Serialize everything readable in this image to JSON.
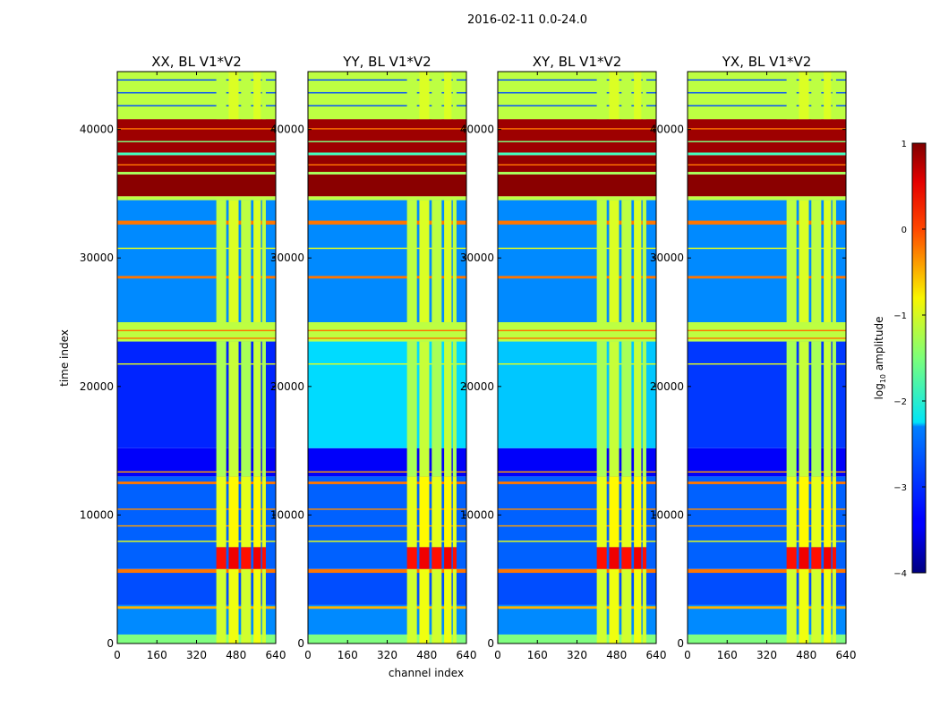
{
  "chart_data": {
    "type": "heatmap",
    "suptitle": "2016-02-11 0.0-24.0",
    "xlabel": "channel index",
    "ylabel": "time index",
    "xlim": [
      0,
      640
    ],
    "ylim": [
      0,
      44500
    ],
    "xticks": [
      0,
      160,
      320,
      480,
      640
    ],
    "yticks": [
      0,
      10000,
      20000,
      30000,
      40000
    ],
    "colorbar": {
      "label_prefix": "log",
      "label_sub": "10",
      "label_suffix": " amplitude",
      "range": [
        -4,
        1
      ],
      "ticks": [
        1,
        0,
        -1,
        -2,
        -3,
        -4
      ],
      "tick_labels": [
        "1",
        "0",
        "−1",
        "−2",
        "−3",
        "−4"
      ],
      "colormap": "jet"
    },
    "panels": [
      {
        "title": "XX, BL V1*V2",
        "floor_mid": -3.2
      },
      {
        "title": "YY, BL V1*V2",
        "floor_mid": -2.3
      },
      {
        "title": "XY, BL V1*V2",
        "floor_mid": -2.4
      },
      {
        "title": "YX, BL V1*V2",
        "floor_mid": -3.1
      }
    ],
    "time_bands": [
      {
        "t": [
          0,
          700
        ],
        "v": -1.5
      },
      {
        "t": [
          700,
          3000
        ],
        "v": -2.7
      },
      {
        "t": [
          2700,
          2900
        ],
        "v": -0.5
      },
      {
        "t": [
          3000,
          5500
        ],
        "v": -3.0
      },
      {
        "t": [
          5500,
          5800
        ],
        "v": -0.2
      },
      {
        "t": [
          5800,
          13000
        ],
        "v": -2.9
      },
      {
        "t": [
          7900,
          8000
        ],
        "v": -1.0
      },
      {
        "t": [
          9100,
          9200
        ],
        "v": -0.4
      },
      {
        "t": [
          10400,
          10500
        ],
        "v": -0.3
      },
      {
        "t": [
          12400,
          12600
        ],
        "v": -0.2
      },
      {
        "t": [
          13000,
          15200
        ],
        "v": -3.4
      },
      {
        "t": [
          13300,
          13400
        ],
        "v": -0.4
      },
      {
        "t": [
          15200,
          23500
        ],
        "v": "mid"
      },
      {
        "t": [
          21700,
          21800
        ],
        "v": -1.0
      },
      {
        "t": [
          23500,
          25000
        ],
        "v": -1.2
      },
      {
        "t": [
          23700,
          23800
        ],
        "v": -0.2
      },
      {
        "t": [
          24300,
          24400
        ],
        "v": -0.2
      },
      {
        "t": [
          25000,
          34500
        ],
        "v": -2.7
      },
      {
        "t": [
          28400,
          28600
        ],
        "v": -0.2
      },
      {
        "t": [
          30700,
          30800
        ],
        "v": -1.0
      },
      {
        "t": [
          32600,
          32900
        ],
        "v": -0.2
      },
      {
        "t": [
          34500,
          34800
        ],
        "v": -1.2
      },
      {
        "t": [
          34800,
          36500
        ],
        "v": 0.95
      },
      {
        "t": [
          36500,
          36700
        ],
        "v": -1.3
      },
      {
        "t": [
          36700,
          38000
        ],
        "v": 0.9
      },
      {
        "t": [
          37200,
          37300
        ],
        "v": -0.2
      },
      {
        "t": [
          38000,
          38200
        ],
        "v": -1.8
      },
      {
        "t": [
          38200,
          40800
        ],
        "v": 0.85
      },
      {
        "t": [
          39000,
          39100
        ],
        "v": -1.5
      },
      {
        "t": [
          40000,
          40100
        ],
        "v": -0.2
      },
      {
        "t": [
          40800,
          44500
        ],
        "v": -1.2
      },
      {
        "t": [
          41800,
          41900
        ],
        "v": -3.0
      },
      {
        "t": [
          42800,
          42900
        ],
        "v": -3.0
      },
      {
        "t": [
          43800,
          43900
        ],
        "v": -3.0
      }
    ],
    "channel_bands": {
      "channels": [
        [
          400,
          440
        ],
        [
          450,
          490
        ],
        [
          500,
          540
        ],
        [
          550,
          580
        ],
        [
          585,
          600
        ]
      ],
      "segments": [
        {
          "t": [
            0,
            5800
          ],
          "v": -1.1
        },
        {
          "t": [
            5800,
            7500
          ],
          "v": 0.3
        },
        {
          "t": [
            7500,
            13000
          ],
          "v": -1.0
        },
        {
          "t": [
            13000,
            23500
          ],
          "v": -1.3
        },
        {
          "t": [
            25000,
            34500
          ],
          "v": -1.2
        },
        {
          "t": [
            40800,
            44500
          ],
          "v": -1.2
        }
      ]
    }
  }
}
